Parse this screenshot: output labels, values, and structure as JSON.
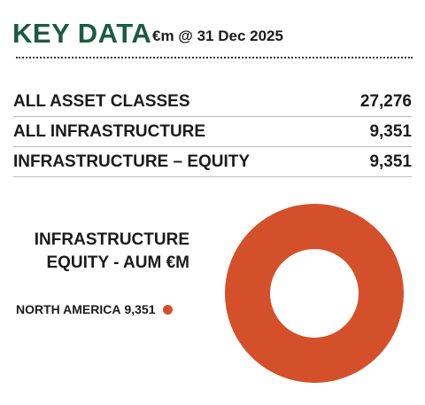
{
  "header": {
    "title": "KEY DATA",
    "subtitle": "€m @ 31 Dec 2025"
  },
  "table": {
    "rows": [
      [
        "ALL ASSET CLASSES",
        "27,276"
      ],
      [
        "ALL INFRASTRUCTURE",
        "9,351"
      ],
      [
        "INFRASTRUCTURE – EQUITY",
        "9,351"
      ]
    ]
  },
  "chart_data": {
    "type": "pie",
    "title": "INFRASTRUCTURE EQUITY - AUM €M",
    "categories": [
      "NORTH AMERICA"
    ],
    "values": [
      9351
    ],
    "value_labels": [
      "9,351"
    ],
    "colors": [
      "#d4502a"
    ],
    "donut": true
  }
}
